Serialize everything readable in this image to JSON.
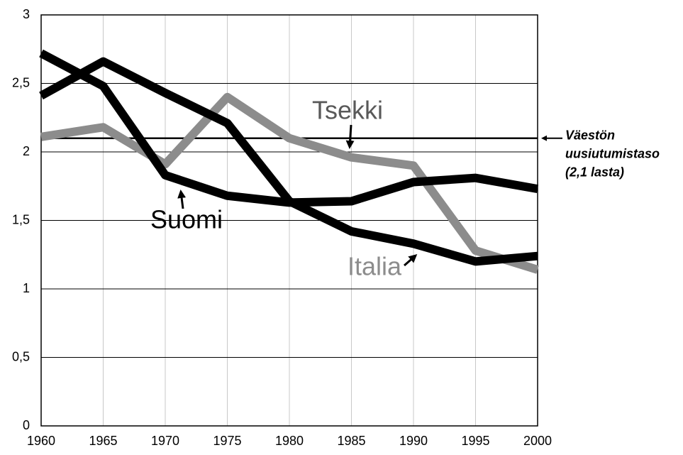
{
  "chart_data": {
    "type": "line",
    "x": [
      1960,
      1965,
      1970,
      1975,
      1980,
      1985,
      1990,
      1995,
      2000
    ],
    "series": [
      {
        "name": "Suomi",
        "color": "#000000",
        "values": [
          2.72,
          2.48,
          1.83,
          1.68,
          1.63,
          1.64,
          1.78,
          1.81,
          1.73
        ]
      },
      {
        "name": "Italia",
        "color": "#000000",
        "values": [
          2.41,
          2.66,
          2.43,
          2.21,
          1.64,
          1.42,
          1.33,
          1.2,
          1.24
        ]
      },
      {
        "name": "Tsekki",
        "color": "#8c8c8c",
        "values": [
          2.11,
          2.18,
          1.91,
          2.4,
          2.1,
          1.96,
          1.9,
          1.28,
          1.14
        ]
      }
    ],
    "xlim": [
      1960,
      2000
    ],
    "xticks": [
      1960,
      1965,
      1970,
      1975,
      1980,
      1985,
      1990,
      1995,
      2000
    ],
    "ylim": [
      0,
      3
    ],
    "yticks": [
      0,
      {
        "value": 0.5,
        "label": "0,5"
      },
      1,
      {
        "value": 1.5,
        "label": "1,5"
      },
      2,
      {
        "value": 2.5,
        "label": "2,5"
      },
      3
    ],
    "grid": true,
    "reference_line": {
      "value": 2.1,
      "label": [
        "Väestön",
        "uusiutumistaso",
        "(2,1 lasta)"
      ]
    }
  }
}
